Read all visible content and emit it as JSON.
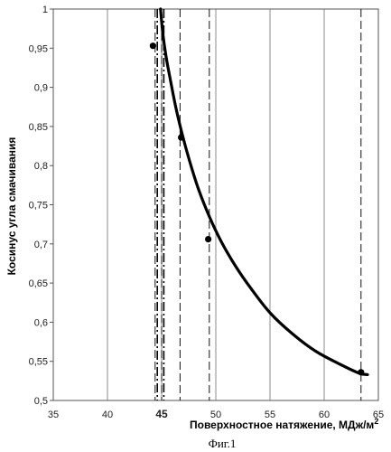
{
  "chart_data": {
    "type": "line",
    "title": "",
    "xlabel": "Поверхностное натяжение, МДж/м",
    "xlabel_sup": "2",
    "ylabel": "Косинус угла смачивания",
    "caption": "Фиг.1",
    "xlim": [
      35,
      65
    ],
    "ylim": [
      0.5,
      1
    ],
    "x_ticks": [
      "35",
      "40",
      "45",
      "50",
      "55",
      "60",
      "65"
    ],
    "y_ticks": [
      "0,5",
      "0,55",
      "0,6",
      "0,65",
      "0,7",
      "0,75",
      "0,8",
      "0,85",
      "0,9",
      "0,95",
      "1"
    ],
    "bold_x_tick": "45",
    "grid": "vertical",
    "series": [
      {
        "kind": "curve",
        "x": [
          44.9,
          45.1,
          45.4,
          45.8,
          46.3,
          46.9,
          47.6,
          48.4,
          49.4,
          50.5,
          51.8,
          53.3,
          55.0,
          57.0,
          59.2,
          61.5,
          63.2,
          64.0
        ],
        "y": [
          1.0,
          0.97,
          0.94,
          0.91,
          0.875,
          0.84,
          0.805,
          0.77,
          0.735,
          0.703,
          0.672,
          0.642,
          0.612,
          0.586,
          0.563,
          0.546,
          0.535,
          0.533
        ]
      },
      {
        "kind": "points",
        "x": [
          44.2,
          46.8,
          49.3,
          63.4
        ],
        "y": [
          0.953,
          0.836,
          0.706,
          0.536
        ]
      }
    ],
    "dash_lines": [
      44.4,
      45.0,
      46.7,
      49.4,
      63.4
    ],
    "dashdot_lines": [
      44.6,
      45.2
    ],
    "colors": {
      "line": "#000000",
      "grid": "#6e6e6e",
      "text": "#222222"
    }
  }
}
